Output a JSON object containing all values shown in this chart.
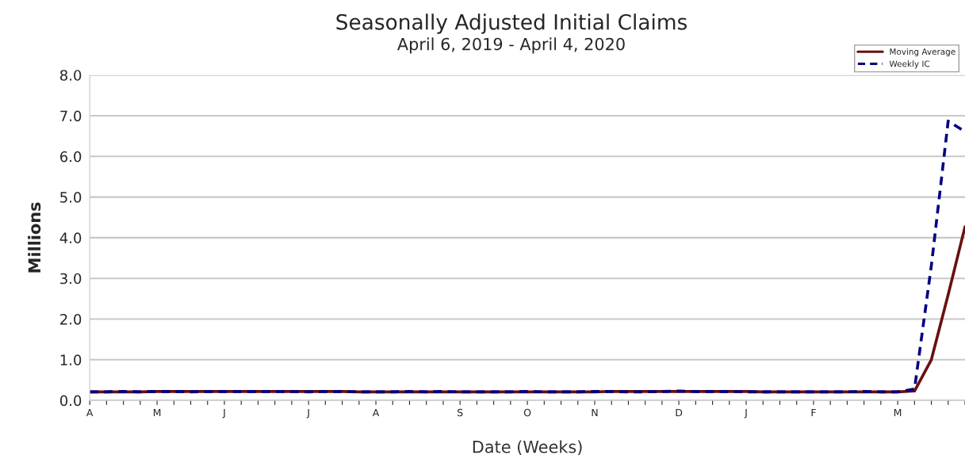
{
  "chart_data": {
    "type": "line",
    "title": "Seasonally Adjusted Initial Claims",
    "subtitle": "April 6, 2019 - April 4, 2020",
    "xlabel": "Date (Weeks)",
    "ylabel": "Millions",
    "categories": [
      "A",
      null,
      null,
      null,
      "M",
      null,
      null,
      null,
      "J",
      null,
      null,
      null,
      null,
      "J",
      null,
      null,
      null,
      "A",
      null,
      null,
      null,
      null,
      "S",
      null,
      null,
      null,
      "O",
      null,
      null,
      null,
      "N",
      null,
      null,
      null,
      null,
      "D",
      null,
      null,
      null,
      "J",
      null,
      null,
      null,
      "F",
      null,
      null,
      null,
      null,
      "M",
      null,
      null,
      null,
      null
    ],
    "series": [
      {
        "name": "Moving Average",
        "color": "#6b0f0f",
        "line_style": "solid",
        "values": [
          0.21,
          0.21,
          0.21,
          0.21,
          0.22,
          0.22,
          0.22,
          0.22,
          0.22,
          0.22,
          0.22,
          0.22,
          0.22,
          0.22,
          0.22,
          0.22,
          0.21,
          0.21,
          0.21,
          0.21,
          0.21,
          0.21,
          0.21,
          0.21,
          0.21,
          0.21,
          0.21,
          0.21,
          0.21,
          0.21,
          0.21,
          0.22,
          0.22,
          0.22,
          0.22,
          0.22,
          0.22,
          0.22,
          0.22,
          0.22,
          0.21,
          0.21,
          0.21,
          0.21,
          0.21,
          0.21,
          0.21,
          0.21,
          0.21,
          0.23,
          1.0,
          2.6,
          4.27
        ]
      },
      {
        "name": "Weekly IC",
        "color": "#000080",
        "line_style": "dashed",
        "values": [
          0.21,
          0.21,
          0.22,
          0.21,
          0.22,
          0.22,
          0.21,
          0.22,
          0.22,
          0.22,
          0.22,
          0.22,
          0.22,
          0.21,
          0.22,
          0.22,
          0.21,
          0.21,
          0.21,
          0.22,
          0.21,
          0.22,
          0.21,
          0.21,
          0.21,
          0.21,
          0.22,
          0.21,
          0.21,
          0.21,
          0.22,
          0.22,
          0.21,
          0.21,
          0.22,
          0.23,
          0.22,
          0.22,
          0.22,
          0.21,
          0.21,
          0.21,
          0.21,
          0.21,
          0.21,
          0.21,
          0.22,
          0.21,
          0.21,
          0.28,
          3.31,
          6.87,
          6.61
        ]
      }
    ],
    "ylim": [
      0,
      8
    ],
    "yticks": [
      {
        "value": 0,
        "label": "0.0"
      },
      {
        "value": 1,
        "label": "1.0"
      },
      {
        "value": 2,
        "label": "2.0"
      },
      {
        "value": 3,
        "label": "3.0"
      },
      {
        "value": 4,
        "label": "4.0"
      },
      {
        "value": 5,
        "label": "5.0"
      },
      {
        "value": 6,
        "label": "6.0"
      },
      {
        "value": 7,
        "label": "7.0"
      },
      {
        "value": 8,
        "label": "8.0"
      }
    ],
    "grid": "y",
    "legend": "top right",
    "marker": "none"
  }
}
